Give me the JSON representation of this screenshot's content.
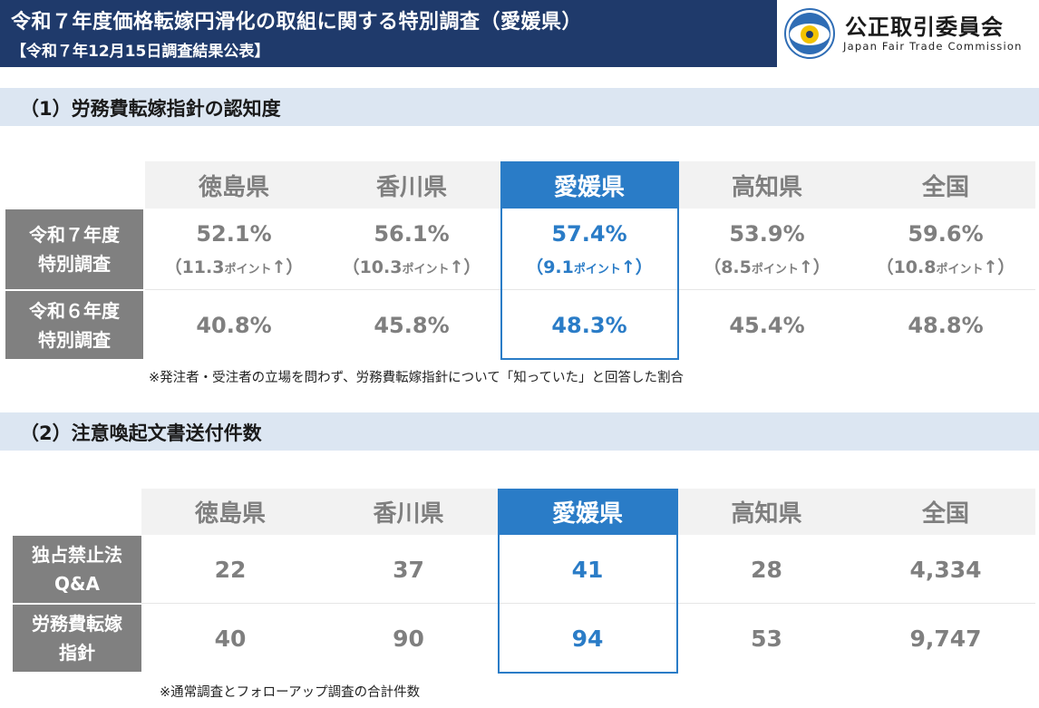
{
  "header": {
    "title": "令和７年度価格転嫁円滑化の取組に関する特別調査（愛媛県）",
    "subtitle": "【令和７年12月15日調査結果公表】"
  },
  "logo": {
    "name": "公正取引委員会",
    "english": "Japan Fair Trade Commission",
    "colors": {
      "ring": "#2f6db5",
      "center": "#f2c300"
    }
  },
  "section1": {
    "title": "（1）労務費転嫁指針の認知度",
    "columns": [
      "徳島県",
      "香川県",
      "愛媛県",
      "高知県",
      "全国"
    ],
    "rows": [
      {
        "label_line1": "令和７年度",
        "label_line2": "特別調査",
        "values": [
          "52.1%",
          "56.1%",
          "57.4%",
          "53.9%",
          "59.6%"
        ],
        "deltas": [
          {
            "open": "（11.3",
            "unit": "ポイント",
            "close": "↑）"
          },
          {
            "open": "（10.3",
            "unit": "ポイント",
            "close": "↑）"
          },
          {
            "open": "（9.1",
            "unit": "ポイント",
            "close": "↑）"
          },
          {
            "open": "（8.5",
            "unit": "ポイント",
            "close": "↑）"
          },
          {
            "open": "（10.8",
            "unit": "ポイント",
            "close": "↑）"
          }
        ]
      },
      {
        "label_line1": "令和６年度",
        "label_line2": "特別調査",
        "values": [
          "40.8%",
          "45.8%",
          "48.3%",
          "45.4%",
          "48.8%"
        ]
      }
    ],
    "note": "※発注者・受注者の立場を問わず、労務費転嫁指針について「知っていた」と回答した割合"
  },
  "section2": {
    "title": "（2）注意喚起文書送付件数",
    "columns": [
      "徳島県",
      "香川県",
      "愛媛県",
      "高知県",
      "全国"
    ],
    "rows": [
      {
        "label_line1": "独占禁止法",
        "label_line2": "Q&A",
        "values": [
          "22",
          "37",
          "41",
          "28",
          "4,334"
        ]
      },
      {
        "label_line1": "労務費転嫁",
        "label_line2": "指針",
        "values": [
          "40",
          "90",
          "94",
          "53",
          "9,747"
        ]
      }
    ],
    "note": "※通常調査とフォローアップ調査の合計件数"
  },
  "colors": {
    "navy": "#1f3a6b",
    "highlight": "#2a7cc7",
    "section_bg": "#dce6f2",
    "row_header": "#808080",
    "col_header_bg": "#f2f2f2",
    "value_gray": "#7f7f7f"
  }
}
